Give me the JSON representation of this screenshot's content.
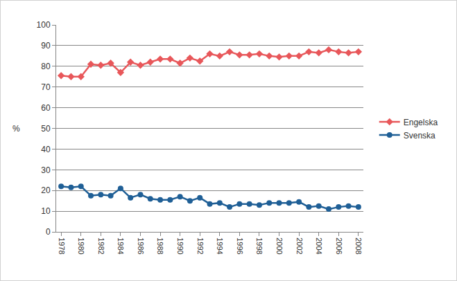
{
  "chart_data": {
    "type": "line",
    "y_label": "%",
    "categories": [
      "1978",
      null,
      "1980",
      null,
      "1982",
      null,
      "1984",
      null,
      "1986",
      null,
      "1988",
      null,
      "1990",
      null,
      "1992",
      null,
      "1994",
      null,
      "1996",
      null,
      "1998",
      null,
      "2000",
      null,
      "2002",
      null,
      "2004",
      null,
      "2006",
      null,
      "2008"
    ],
    "series": [
      {
        "name": "Engelska",
        "color": "#e8575a",
        "marker": "diamond",
        "values": [
          75.5,
          75,
          75,
          81,
          80.5,
          81.5,
          77,
          82,
          80.5,
          82,
          83.5,
          83.5,
          81.5,
          84,
          82.5,
          86,
          85,
          87,
          85.5,
          85.5,
          86,
          85,
          84.5,
          85,
          85,
          87,
          86.5,
          88,
          87,
          86.5,
          87
        ]
      },
      {
        "name": "Svenska",
        "color": "#1f5f96",
        "marker": "circle",
        "values": [
          22,
          21.5,
          22,
          17.5,
          18,
          17.5,
          21,
          16.5,
          18,
          16,
          15.5,
          15.5,
          17,
          15,
          16.5,
          13.5,
          14,
          12,
          13.5,
          13.5,
          13,
          14,
          14,
          14,
          14.5,
          12,
          12.5,
          11,
          12,
          12.5,
          12
        ]
      }
    ],
    "ylim": [
      0,
      100
    ],
    "yticks": [
      0,
      10,
      20,
      30,
      40,
      50,
      60,
      70,
      80,
      90,
      100
    ],
    "grid": true,
    "legend": "right"
  }
}
